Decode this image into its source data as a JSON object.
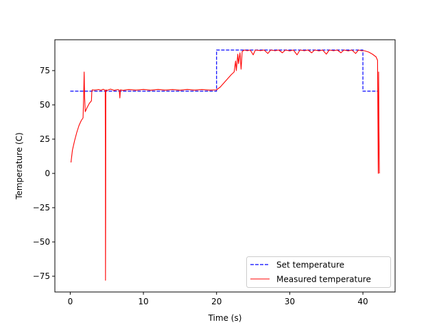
{
  "chart_data": {
    "type": "line",
    "title": "",
    "xlabel": "Time (s)",
    "ylabel": "Temperature (C)",
    "xlim": [
      -2.1,
      44.4
    ],
    "ylim": [
      -86.5,
      97.5
    ],
    "xticks": [
      0,
      10,
      20,
      30,
      40
    ],
    "yticks": [
      -75,
      -50,
      -25,
      0,
      25,
      50,
      75
    ],
    "grid": false,
    "legend_position": "lower-right",
    "series": [
      {
        "name": "Set temperature",
        "style": "dashed",
        "color": "#0000ff",
        "points": [
          [
            0.0,
            60
          ],
          [
            20.0,
            60
          ],
          [
            20.0,
            90
          ],
          [
            40.0,
            90
          ],
          [
            40.0,
            60
          ],
          [
            42.0,
            60
          ]
        ]
      },
      {
        "name": "Measured temperature",
        "style": "solid",
        "color": "#ff0000",
        "points": [
          [
            0.1,
            8
          ],
          [
            0.3,
            17
          ],
          [
            0.6,
            24
          ],
          [
            0.9,
            30
          ],
          [
            1.2,
            35
          ],
          [
            1.5,
            38.5
          ],
          [
            1.75,
            40.5
          ],
          [
            1.83,
            55
          ],
          [
            1.9,
            74
          ],
          [
            1.97,
            55
          ],
          [
            2.05,
            45
          ],
          [
            2.3,
            48
          ],
          [
            2.6,
            51
          ],
          [
            2.9,
            53
          ],
          [
            2.95,
            60
          ],
          [
            3.0,
            61
          ],
          [
            3.3,
            60.8
          ],
          [
            3.6,
            61
          ],
          [
            3.9,
            61.2
          ],
          [
            4.2,
            60.7
          ],
          [
            4.5,
            61.4
          ],
          [
            4.75,
            60.8
          ],
          [
            4.78,
            60
          ],
          [
            4.8,
            20
          ],
          [
            4.82,
            -78
          ],
          [
            4.84,
            -30
          ],
          [
            4.86,
            60
          ],
          [
            4.9,
            61
          ],
          [
            5.0,
            60.5
          ],
          [
            5.5,
            61.5
          ],
          [
            6.0,
            60.6
          ],
          [
            6.5,
            61.2
          ],
          [
            6.7,
            60.8
          ],
          [
            6.78,
            55
          ],
          [
            6.86,
            61
          ],
          [
            7.2,
            60.6
          ],
          [
            8.0,
            61.2
          ],
          [
            9.0,
            60.8
          ],
          [
            10.0,
            61.3
          ],
          [
            11.0,
            60.7
          ],
          [
            12.0,
            61.3
          ],
          [
            13.0,
            60.8
          ],
          [
            14.0,
            61.2
          ],
          [
            15.0,
            60.7
          ],
          [
            16.0,
            61.3
          ],
          [
            17.0,
            60.8
          ],
          [
            18.0,
            61.2
          ],
          [
            19.0,
            60.8
          ],
          [
            20.0,
            61.0
          ],
          [
            20.5,
            63
          ],
          [
            21.0,
            66
          ],
          [
            21.5,
            69
          ],
          [
            22.0,
            72
          ],
          [
            22.4,
            74
          ],
          [
            22.6,
            82
          ],
          [
            22.7,
            75
          ],
          [
            22.9,
            87
          ],
          [
            23.0,
            80
          ],
          [
            23.2,
            88
          ],
          [
            23.35,
            76
          ],
          [
            23.5,
            89
          ],
          [
            23.8,
            90
          ],
          [
            24.2,
            89.5
          ],
          [
            24.6,
            90
          ],
          [
            25.0,
            86.5
          ],
          [
            25.3,
            90
          ],
          [
            26.0,
            89.6
          ],
          [
            26.5,
            90
          ],
          [
            27.0,
            87.5
          ],
          [
            27.4,
            90
          ],
          [
            28.0,
            89.5
          ],
          [
            28.5,
            90
          ],
          [
            29.0,
            88
          ],
          [
            29.4,
            90
          ],
          [
            30.0,
            89.4
          ],
          [
            30.5,
            90
          ],
          [
            31.0,
            86.5
          ],
          [
            31.4,
            90
          ],
          [
            32.0,
            89.5
          ],
          [
            32.5,
            90
          ],
          [
            33.0,
            88
          ],
          [
            33.4,
            90
          ],
          [
            34.0,
            89.4
          ],
          [
            34.5,
            90
          ],
          [
            35.0,
            87
          ],
          [
            35.4,
            90
          ],
          [
            36.0,
            89.5
          ],
          [
            36.5,
            90
          ],
          [
            37.0,
            88
          ],
          [
            37.4,
            90
          ],
          [
            38.0,
            89.4
          ],
          [
            38.5,
            90
          ],
          [
            39.0,
            87.5
          ],
          [
            39.4,
            90
          ],
          [
            39.8,
            89.5
          ],
          [
            40.2,
            89.5
          ],
          [
            40.8,
            88.5
          ],
          [
            41.3,
            87
          ],
          [
            41.8,
            85
          ],
          [
            42.0,
            82.5
          ],
          [
            42.05,
            40
          ],
          [
            42.1,
            0
          ],
          [
            42.15,
            74
          ],
          [
            42.2,
            30
          ],
          [
            42.25,
            0
          ]
        ]
      }
    ]
  }
}
